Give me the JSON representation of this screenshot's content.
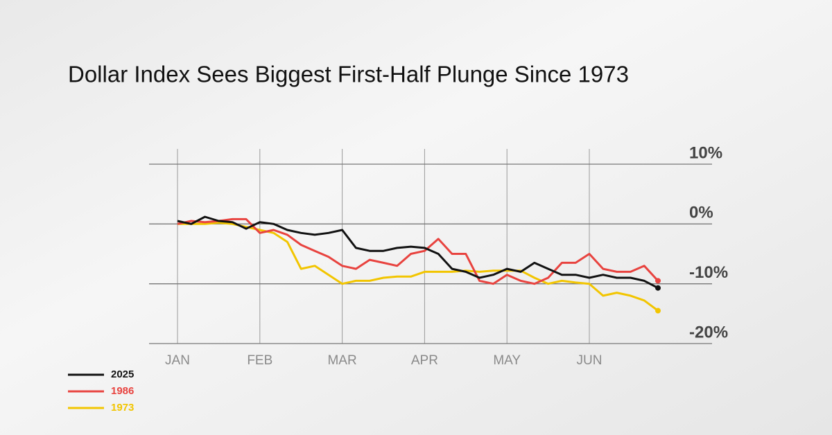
{
  "chart_data": {
    "type": "line",
    "title": "Dollar Index Sees Biggest First-Half Plunge Since 1973",
    "categories": [
      "JAN",
      null,
      null,
      null,
      null,
      null,
      "FEB",
      null,
      null,
      null,
      null,
      null,
      "MAR",
      null,
      null,
      null,
      null,
      null,
      "APR",
      null,
      null,
      null,
      null,
      null,
      "MAY",
      null,
      null,
      null,
      null,
      null,
      "JUN",
      null,
      null,
      null,
      null,
      null
    ],
    "series": [
      {
        "name": "2025",
        "color": "#111111",
        "values": [
          0.5,
          0,
          1.2,
          0.5,
          0.3,
          -0.8,
          0.3,
          0,
          -1,
          -1.5,
          -1.8,
          -1.5,
          -1,
          -4,
          -4.5,
          -4.5,
          -4,
          -3.8,
          -4,
          -5,
          -7.5,
          -8,
          -9,
          -8.5,
          -7.5,
          -8,
          -6.5,
          -7.5,
          -8.5,
          -8.5,
          -9,
          -8.5,
          -9,
          -9,
          -9.5,
          -10.7
        ]
      },
      {
        "name": "1986",
        "color": "#e8433f",
        "values": [
          0,
          0.5,
          0.3,
          0.5,
          0.8,
          0.8,
          -1.5,
          -1,
          -1.8,
          -3.5,
          -4.5,
          -5.5,
          -7,
          -7.5,
          -6,
          -6.5,
          -7,
          -5,
          -4.5,
          -2.5,
          -5,
          -5,
          -9.5,
          -10,
          -8.5,
          -9.5,
          -10,
          -9,
          -6.5,
          -6.5,
          -5,
          -7.5,
          -8,
          -8,
          -7,
          -9.5
        ]
      },
      {
        "name": "1973",
        "color": "#f2c500",
        "values": [
          0,
          0,
          0,
          0.2,
          0,
          -0.5,
          -1,
          -1.5,
          -3,
          -7.5,
          -7,
          -8.5,
          -10,
          -9.5,
          -9.5,
          -9,
          -8.8,
          -8.8,
          -8,
          -8,
          -8,
          -7.8,
          -8,
          -7.8,
          -7.8,
          -7.8,
          -9,
          -10,
          -9.5,
          -9.8,
          -10,
          -12,
          -11.5,
          -12,
          -12.8,
          -14.5
        ]
      }
    ],
    "ylim": [
      -20,
      10
    ],
    "yticks": [
      {
        "value": 10,
        "label": "10%"
      },
      {
        "value": 0,
        "label": "0%"
      },
      {
        "value": -10,
        "label": "-10%"
      },
      {
        "value": -20,
        "label": "-20%"
      }
    ],
    "grid": true
  }
}
